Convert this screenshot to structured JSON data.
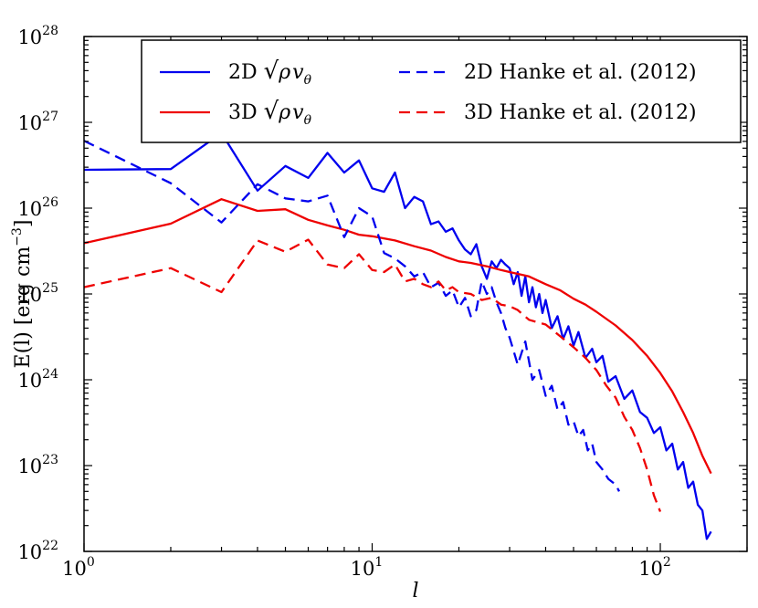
{
  "chart_data": {
    "type": "line",
    "title": "",
    "xlabel": "l",
    "ylabel": "E(l) [erg cm",
    "ylabel_sup": "−3",
    "ylabel_end": "]",
    "xscale": "log",
    "yscale": "log",
    "xlim": [
      1,
      200
    ],
    "ylim": [
      1e+22,
      1e+28
    ],
    "x_ticks": [
      {
        "value": 1,
        "base": "10",
        "exp": "0"
      },
      {
        "value": 10,
        "base": "10",
        "exp": "1"
      },
      {
        "value": 100,
        "base": "10",
        "exp": "2"
      }
    ],
    "y_ticks": [
      {
        "value": 1e+22,
        "base": "10",
        "exp": "22"
      },
      {
        "value": 1e+23,
        "base": "10",
        "exp": "23"
      },
      {
        "value": 1e+24,
        "base": "10",
        "exp": "24"
      },
      {
        "value": 1e+25,
        "base": "10",
        "exp": "25"
      },
      {
        "value": 1e+26,
        "base": "10",
        "exp": "26"
      },
      {
        "value": 1e+27,
        "base": "10",
        "exp": "27"
      },
      {
        "value": 1e+28,
        "base": "10",
        "exp": "28"
      }
    ],
    "legend_position": "top-right",
    "series": [
      {
        "name": "2D √ρ vθ",
        "legend_prefix": "2D ",
        "legend_math": true,
        "color": "#0000ee",
        "dash": "solid",
        "x": [
          1,
          2,
          3,
          4,
          5,
          6,
          7,
          8,
          9,
          10,
          11,
          12,
          13,
          14,
          15,
          16,
          17,
          18,
          19,
          20,
          21,
          22,
          23,
          24,
          25,
          26,
          27,
          28,
          29,
          30,
          31,
          32,
          33,
          34,
          35,
          36,
          37,
          38,
          39,
          40,
          42,
          44,
          46,
          48,
          50,
          52,
          55,
          58,
          60,
          63,
          66,
          70,
          75,
          80,
          85,
          90,
          95,
          100,
          105,
          110,
          115,
          120,
          125,
          130,
          135,
          140,
          145,
          150
        ],
        "values": [
          2.8e+26,
          2.85e+26,
          7.5e+26,
          1.6e+26,
          3.1e+26,
          2.25e+26,
          4.4e+26,
          2.6e+26,
          3.6e+26,
          1.7e+26,
          1.55e+26,
          2.6e+26,
          1e+26,
          1.35e+26,
          1.2e+26,
          6.5e+25,
          7e+25,
          5.3e+25,
          5.8e+25,
          4.2e+25,
          3.3e+25,
          2.9e+25,
          3.8e+25,
          2.1e+25,
          1.5e+25,
          2.4e+25,
          2e+25,
          2.5e+25,
          2.2e+25,
          2e+25,
          1.3e+25,
          1.8e+25,
          9.5e+24,
          1.6e+25,
          8e+24,
          1.2e+25,
          7e+24,
          1e+25,
          6e+24,
          8.5e+24,
          4e+24,
          5.5e+24,
          3e+24,
          4.2e+24,
          2.5e+24,
          3.6e+24,
          1.8e+24,
          2.3e+24,
          1.6e+24,
          1.9e+24,
          9.5e+23,
          1.1e+24,
          6e+23,
          7.5e+23,
          4.2e+23,
          3.6e+23,
          2.4e+23,
          2.8e+23,
          1.5e+23,
          1.8e+23,
          9e+22,
          1.1e+23,
          5.5e+22,
          6.5e+22,
          3.5e+22,
          3e+22,
          1.4e+22,
          1.7e+22
        ]
      },
      {
        "name": "3D √ρ vθ",
        "legend_prefix": "3D ",
        "legend_math": true,
        "color": "#ee0000",
        "dash": "solid",
        "x": [
          1,
          2,
          3,
          4,
          5,
          6,
          7,
          8,
          9,
          10,
          12,
          14,
          16,
          18,
          20,
          22,
          25,
          28,
          30,
          35,
          40,
          45,
          50,
          55,
          60,
          70,
          80,
          90,
          100,
          110,
          120,
          130,
          140,
          150
        ],
        "values": [
          3.9e+25,
          6.6e+25,
          1.27e+26,
          9.3e+25,
          9.7e+25,
          7.3e+25,
          6.3e+25,
          5.6e+25,
          4.9e+25,
          4.7e+25,
          4.2e+25,
          3.6e+25,
          3.2e+25,
          2.7e+25,
          2.4e+25,
          2.3e+25,
          2.1e+25,
          1.9e+25,
          1.8e+25,
          1.6e+25,
          1.3e+25,
          1.1e+25,
          8.8e+24,
          7.5e+24,
          6.2e+24,
          4.3e+24,
          2.9e+24,
          1.9e+24,
          1.2e+24,
          7.3e+23,
          4.2e+23,
          2.4e+23,
          1.3e+23,
          8.1e+22
        ]
      },
      {
        "name": "2D Hanke et al. (2012)",
        "legend_prefix": "2D Hanke et al. (2012)",
        "legend_math": false,
        "color": "#0000ee",
        "dash": "dashed",
        "x": [
          1,
          2,
          3,
          4,
          5,
          6,
          7,
          8,
          9,
          10,
          11,
          12,
          13,
          14,
          15,
          16,
          17,
          18,
          19,
          20,
          21,
          22,
          23,
          24,
          25,
          26,
          27,
          28,
          29,
          30,
          32,
          34,
          36,
          38,
          40,
          42,
          44,
          46,
          48,
          50,
          52,
          54,
          56,
          58,
          60,
          63,
          66,
          70,
          72
        ],
        "values": [
          6.1e+26,
          1.95e+26,
          6.8e+25,
          1.9e+26,
          1.3e+26,
          1.2e+26,
          1.4e+26,
          4.6e+25,
          1e+26,
          8e+25,
          3e+25,
          2.6e+25,
          2.1e+25,
          1.6e+25,
          1.8e+25,
          1.2e+25,
          1.35e+25,
          9.5e+24,
          1.1e+25,
          7e+24,
          9e+24,
          5.5e+24,
          6.5e+24,
          1.4e+25,
          1e+25,
          1.2e+25,
          8e+24,
          6e+24,
          4e+24,
          3.1e+24,
          1.5e+24,
          2.8e+24,
          1e+24,
          1.3e+24,
          6.5e+23,
          8.5e+23,
          4.5e+23,
          5.5e+23,
          3e+23,
          3.3e+23,
          2.2e+23,
          2.6e+23,
          1.5e+23,
          1.8e+23,
          1.1e+23,
          9e+22,
          7e+22,
          6e+22,
          5e+22
        ]
      },
      {
        "name": "3D Hanke et al. (2012)",
        "legend_prefix": "3D Hanke et al. (2012)",
        "legend_math": false,
        "color": "#ee0000",
        "dash": "dashed",
        "x": [
          1,
          2,
          3,
          4,
          5,
          6,
          7,
          8,
          9,
          10,
          11,
          12,
          13,
          14,
          15,
          16,
          17,
          18,
          19,
          20,
          22,
          24,
          26,
          28,
          30,
          32,
          35,
          40,
          45,
          50,
          55,
          60,
          65,
          70,
          75,
          80,
          85,
          90,
          95,
          100
        ],
        "values": [
          1.2e+25,
          2e+25,
          1.05e+25,
          4.2e+25,
          3.1e+25,
          4.3e+25,
          2.2e+25,
          2e+25,
          2.9e+25,
          1.9e+25,
          1.8e+25,
          2.2e+25,
          1.4e+25,
          1.5e+25,
          1.3e+25,
          1.2e+25,
          1.4e+25,
          1.1e+25,
          1.2e+25,
          1.05e+25,
          1e+25,
          8.5e+24,
          9e+24,
          7.5e+24,
          7.2e+24,
          6.5e+24,
          5e+24,
          4.4e+24,
          3.2e+24,
          2.4e+24,
          1.8e+24,
          1.3e+24,
          8.5e+23,
          6.2e+23,
          3.7e+23,
          2.6e+23,
          1.6e+23,
          9e+22,
          4.5e+22,
          2.9e+22
        ]
      }
    ]
  }
}
